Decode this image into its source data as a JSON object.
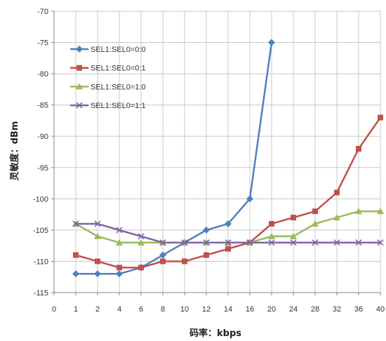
{
  "chart_data": {
    "type": "line",
    "xlabel": "码率：kbps",
    "ylabel": "灵敏度：dBm",
    "categories": [
      "0",
      "1",
      "2",
      "4",
      "6",
      "8",
      "10",
      "12",
      "14",
      "16",
      "20",
      "24",
      "28",
      "32",
      "36",
      "40"
    ],
    "ylim": [
      -115,
      -70
    ],
    "y_ticks": [
      -70,
      -75,
      -80,
      -85,
      -90,
      -95,
      -100,
      -105,
      -110,
      -115
    ],
    "grid": true,
    "legend": "top-left",
    "series": [
      {
        "name": "SEL1:SEL0=0:0",
        "color": "#4F81BD",
        "marker": "diamond",
        "values": [
          null,
          -112,
          -112,
          -112,
          -111,
          -109,
          -107,
          -105,
          -104,
          -100,
          -75,
          null,
          null,
          null,
          null,
          null
        ]
      },
      {
        "name": "SEL1:SEL0=0:1",
        "color": "#C0504D",
        "marker": "square",
        "values": [
          null,
          -109,
          -110,
          -111,
          -111,
          -110,
          -110,
          -109,
          -108,
          -107,
          -104,
          -103,
          -102,
          -99,
          -92,
          -87
        ]
      },
      {
        "name": "SEL1:SEL0=1:0",
        "color": "#9BBB59",
        "marker": "triangle",
        "values": [
          null,
          -104,
          -106,
          -107,
          -107,
          -107,
          -107,
          -107,
          -107,
          -107,
          -106,
          -106,
          -104,
          -103,
          -102,
          -102
        ]
      },
      {
        "name": "SEL1:SEL0=1:1",
        "color": "#8064A2",
        "marker": "x",
        "values": [
          null,
          -104,
          -104,
          -105,
          -106,
          -107,
          -107,
          -107,
          -107,
          -107,
          -107,
          -107,
          -107,
          -107,
          -107,
          -107
        ]
      }
    ]
  }
}
